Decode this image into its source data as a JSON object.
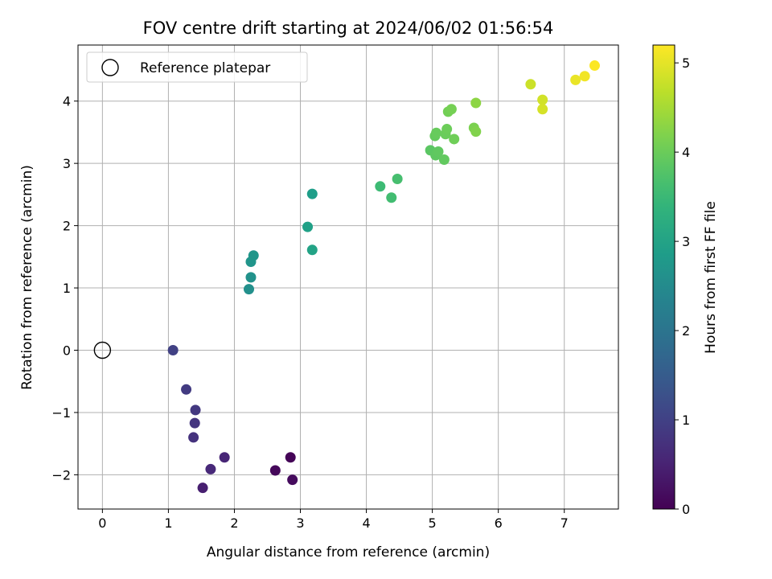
{
  "chart_data": {
    "type": "scatter",
    "title": "FOV centre drift starting at 2024/06/02 01:56:54",
    "xlabel": "Angular distance from reference (arcmin)",
    "ylabel": "Rotation from reference (arcmin)",
    "xlim": [
      -0.37,
      7.82
    ],
    "ylim": [
      -2.55,
      4.9
    ],
    "xticks": [
      0,
      1,
      2,
      3,
      4,
      5,
      6,
      7
    ],
    "yticks": [
      -2,
      -1,
      0,
      1,
      2,
      3,
      4
    ],
    "grid": true,
    "legend": {
      "position": "upper-left",
      "entries": [
        "Reference platepar"
      ]
    },
    "reference_point": {
      "x": 0,
      "y": 0
    },
    "colorbar": {
      "label": "Hours from first FF file",
      "range": [
        0,
        5.2
      ],
      "ticks": [
        0,
        1,
        2,
        3,
        4,
        5
      ],
      "colormap": "viridis"
    },
    "points": [
      {
        "x": 2.85,
        "y": -1.72,
        "t": 0.05
      },
      {
        "x": 2.62,
        "y": -1.93,
        "t": 0.1
      },
      {
        "x": 2.88,
        "y": -2.08,
        "t": 0.15
      },
      {
        "x": 1.52,
        "y": -2.21,
        "t": 0.45
      },
      {
        "x": 1.85,
        "y": -1.72,
        "t": 0.55
      },
      {
        "x": 1.64,
        "y": -1.91,
        "t": 0.6
      },
      {
        "x": 1.38,
        "y": -1.4,
        "t": 0.75
      },
      {
        "x": 1.4,
        "y": -1.17,
        "t": 0.8
      },
      {
        "x": 1.41,
        "y": -0.96,
        "t": 0.85
      },
      {
        "x": 1.27,
        "y": -0.63,
        "t": 0.9
      },
      {
        "x": 1.07,
        "y": 0.0,
        "t": 1.0
      },
      {
        "x": 2.22,
        "y": 0.98,
        "t": 2.6
      },
      {
        "x": 2.25,
        "y": 1.17,
        "t": 2.65
      },
      {
        "x": 2.25,
        "y": 1.42,
        "t": 2.7
      },
      {
        "x": 2.29,
        "y": 1.52,
        "t": 2.72
      },
      {
        "x": 3.18,
        "y": 2.51,
        "t": 2.9
      },
      {
        "x": 3.11,
        "y": 1.98,
        "t": 2.95
      },
      {
        "x": 3.18,
        "y": 1.61,
        "t": 3.0
      },
      {
        "x": 4.21,
        "y": 2.63,
        "t": 3.55
      },
      {
        "x": 4.38,
        "y": 2.45,
        "t": 3.6
      },
      {
        "x": 4.47,
        "y": 2.75,
        "t": 3.65
      },
      {
        "x": 4.97,
        "y": 3.21,
        "t": 3.85
      },
      {
        "x": 5.05,
        "y": 3.13,
        "t": 3.88
      },
      {
        "x": 5.09,
        "y": 3.19,
        "t": 3.9
      },
      {
        "x": 5.18,
        "y": 3.06,
        "t": 3.92
      },
      {
        "x": 5.04,
        "y": 3.44,
        "t": 3.95
      },
      {
        "x": 5.06,
        "y": 3.49,
        "t": 3.97
      },
      {
        "x": 5.2,
        "y": 3.47,
        "t": 4.0
      },
      {
        "x": 5.22,
        "y": 3.55,
        "t": 4.02
      },
      {
        "x": 5.33,
        "y": 3.39,
        "t": 4.05
      },
      {
        "x": 5.24,
        "y": 3.83,
        "t": 4.08
      },
      {
        "x": 5.29,
        "y": 3.87,
        "t": 4.1
      },
      {
        "x": 5.63,
        "y": 3.57,
        "t": 4.15
      },
      {
        "x": 5.66,
        "y": 3.51,
        "t": 4.2
      },
      {
        "x": 5.66,
        "y": 3.97,
        "t": 4.3
      },
      {
        "x": 6.49,
        "y": 4.27,
        "t": 4.8
      },
      {
        "x": 6.67,
        "y": 4.02,
        "t": 4.85
      },
      {
        "x": 6.67,
        "y": 3.87,
        "t": 4.88
      },
      {
        "x": 7.17,
        "y": 4.34,
        "t": 5.05
      },
      {
        "x": 7.31,
        "y": 4.4,
        "t": 5.1
      },
      {
        "x": 7.46,
        "y": 4.57,
        "t": 5.18
      }
    ]
  }
}
